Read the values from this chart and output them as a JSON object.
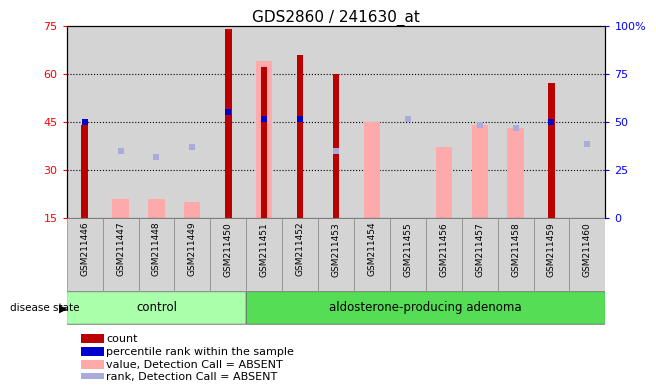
{
  "title": "GDS2860 / 241630_at",
  "samples": [
    "GSM211446",
    "GSM211447",
    "GSM211448",
    "GSM211449",
    "GSM211450",
    "GSM211451",
    "GSM211452",
    "GSM211453",
    "GSM211454",
    "GSM211455",
    "GSM211456",
    "GSM211457",
    "GSM211458",
    "GSM211459",
    "GSM211460"
  ],
  "count": [
    44,
    null,
    null,
    null,
    74,
    62,
    66,
    60,
    null,
    null,
    null,
    null,
    null,
    57,
    null
  ],
  "percentile": [
    45,
    null,
    null,
    null,
    48,
    46,
    46,
    null,
    null,
    null,
    null,
    null,
    null,
    45,
    null
  ],
  "value_absent": [
    null,
    21,
    21,
    20,
    null,
    64,
    null,
    null,
    45,
    null,
    37,
    44,
    43,
    null,
    null
  ],
  "rank_absent": [
    null,
    36,
    34,
    37,
    null,
    46,
    null,
    36,
    null,
    46,
    null,
    44,
    43,
    null,
    38
  ],
  "groups": {
    "control": [
      0,
      4
    ],
    "adenoma": [
      5,
      14
    ]
  },
  "ylim": [
    15,
    75
  ],
  "yticks_left": [
    15,
    30,
    45,
    60,
    75
  ],
  "yticks_right_labels": [
    "0",
    "25",
    "50",
    "75",
    "100%"
  ],
  "yticks_right_pos": [
    15,
    30,
    45,
    60,
    75
  ],
  "colors": {
    "count": "#bb0000",
    "percentile": "#0000cc",
    "value_absent": "#ffaaaa",
    "rank_absent": "#aaaadd",
    "control_bg": "#aaffaa",
    "adenoma_bg": "#55dd55",
    "sample_bg": "#d4d4d4"
  },
  "legend": [
    {
      "label": "count",
      "color": "#bb0000"
    },
    {
      "label": "percentile rank within the sample",
      "color": "#0000cc"
    },
    {
      "label": "value, Detection Call = ABSENT",
      "color": "#ffaaaa"
    },
    {
      "label": "rank, Detection Call = ABSENT",
      "color": "#aaaadd"
    }
  ]
}
